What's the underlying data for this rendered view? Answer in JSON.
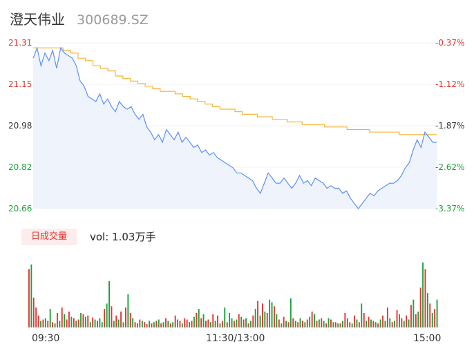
{
  "header": {
    "name": "澄天伟业",
    "code": "300689.SZ"
  },
  "colors": {
    "price_line": "#5b8ff9",
    "avg_line": "#f5b335",
    "up": "#e8332f",
    "down": "#1aa33a",
    "area_fill": "#eef3fc"
  },
  "chart_data": {
    "type": "line",
    "price_axis": {
      "ticks": [
        {
          "label": "21.31",
          "color": "#e8332f"
        },
        {
          "label": "21.15",
          "color": "#e8332f"
        },
        {
          "label": "20.98",
          "color": "#333333"
        },
        {
          "label": "20.82",
          "color": "#1aa33a"
        },
        {
          "label": "20.66",
          "color": "#1aa33a"
        }
      ],
      "ylim": [
        20.66,
        21.31
      ]
    },
    "percent_axis": {
      "ticks": [
        {
          "label": "-0.37%",
          "color": "#e8332f"
        },
        {
          "label": "-1.12%",
          "color": "#e8332f"
        },
        {
          "label": "-1.87%",
          "color": "#333333"
        },
        {
          "label": "-2.62%",
          "color": "#1aa33a"
        },
        {
          "label": "-3.37%",
          "color": "#1aa33a"
        }
      ]
    },
    "x_labels": [
      "09:30",
      "11:30/13:00",
      "15:00"
    ],
    "series": [
      {
        "values": [
          21.25,
          21.29,
          21.22,
          21.27,
          21.24,
          21.28,
          21.21,
          21.29,
          21.27,
          21.26,
          21.25,
          21.22,
          21.16,
          21.14,
          21.1,
          21.09,
          21.08,
          21.11,
          21.07,
          21.09,
          21.06,
          21.04,
          21.08,
          21.06,
          21.05,
          21.06,
          21.03,
          21.01,
          21.03,
          20.98,
          20.96,
          20.93,
          20.95,
          20.92,
          20.97,
          20.95,
          20.93,
          20.96,
          20.92,
          20.94,
          20.92,
          20.9,
          20.91,
          20.88,
          20.89,
          20.87,
          20.88,
          20.86,
          20.85,
          20.84,
          20.83,
          20.82,
          20.8,
          20.8,
          20.79,
          20.78,
          20.77,
          20.74,
          20.72,
          20.76,
          20.8,
          20.78,
          20.76,
          20.76,
          20.78,
          20.76,
          20.74,
          20.76,
          20.79,
          20.76,
          20.77,
          20.75,
          20.78,
          20.77,
          20.76,
          20.74,
          20.75,
          20.74,
          20.74,
          20.72,
          20.73,
          20.7,
          20.68,
          20.66,
          20.68,
          20.7,
          20.72,
          20.71,
          20.73,
          20.74,
          20.75,
          20.76,
          20.76,
          20.77,
          20.79,
          20.82,
          20.84,
          20.89,
          20.93,
          20.9,
          20.96,
          20.94,
          20.92,
          20.92
        ]
      },
      {
        "values": [
          21.29,
          21.29,
          21.29,
          21.29,
          21.28,
          21.27,
          21.25,
          21.24,
          21.22,
          21.21,
          21.2,
          21.18,
          21.17,
          21.16,
          21.15,
          21.14,
          21.13,
          21.12,
          21.12,
          21.11,
          21.1,
          21.09,
          21.08,
          21.07,
          21.06,
          21.05,
          21.05,
          21.04,
          21.03,
          21.03,
          21.02,
          21.02,
          21.01,
          21.01,
          21.0,
          21.0,
          20.99,
          20.99,
          20.99,
          20.98,
          20.98,
          20.98,
          20.97,
          20.97,
          20.97,
          20.96,
          20.96,
          20.96,
          20.96,
          20.95,
          20.95,
          20.95,
          20.95,
          20.95,
          20.95
        ]
      }
    ],
    "volume": {
      "label": "日成交量",
      "text": "vol: 1.03万手",
      "values": [
        0.88,
        0.95,
        0.45,
        0.3,
        0.18,
        0.1,
        0.12,
        0.14,
        0.1,
        0.28,
        0.08,
        0.06,
        0.22,
        0.1,
        0.3,
        0.2,
        0.12,
        0.24,
        0.16,
        0.14,
        0.1,
        0.12,
        0.22,
        0.2,
        0.16,
        0.18,
        0.08,
        0.15,
        0.12,
        0.1,
        0.14,
        0.08,
        0.28,
        0.36,
        0.7,
        0.32,
        0.1,
        0.18,
        0.12,
        0.24,
        0.08,
        0.3,
        0.5,
        0.22,
        0.14,
        0.08,
        0.06,
        0.12,
        0.1,
        0.08,
        0.05,
        0.1,
        0.06,
        0.08,
        0.1,
        0.12,
        0.06,
        0.08,
        0.14,
        0.1,
        0.06,
        0.08,
        0.18,
        0.12,
        0.1,
        0.06,
        0.14,
        0.12,
        0.08,
        0.1,
        0.16,
        0.22,
        0.28,
        0.14,
        0.2,
        0.1,
        0.12,
        0.08,
        0.2,
        0.1,
        0.18,
        0.06,
        0.1,
        0.3,
        0.08,
        0.22,
        0.14,
        0.1,
        0.12,
        0.2,
        0.16,
        0.12,
        0.14,
        0.06,
        0.1,
        0.18,
        0.28,
        0.4,
        0.18,
        0.36,
        0.24,
        0.22,
        0.42,
        0.38,
        0.32,
        0.2,
        0.12,
        0.06,
        0.16,
        0.1,
        0.08,
        0.44,
        0.14,
        0.1,
        0.08,
        0.14,
        0.1,
        0.08,
        0.12,
        0.16,
        0.24,
        0.2,
        0.1,
        0.12,
        0.14,
        0.1,
        0.06,
        0.14,
        0.12,
        0.08,
        0.08,
        0.06,
        0.06,
        0.1,
        0.22,
        0.14,
        0.08,
        0.06,
        0.18,
        0.12,
        0.08,
        0.36,
        0.22,
        0.1,
        0.16,
        0.12,
        0.1,
        0.08,
        0.06,
        0.12,
        0.18,
        0.1,
        0.3,
        0.14,
        0.08,
        0.1,
        0.26,
        0.2,
        0.14,
        0.1,
        0.18,
        0.12,
        0.34,
        0.42,
        0.2,
        0.24,
        0.6,
        0.98,
        0.88,
        0.52,
        0.36,
        0.22,
        0.28,
        0.42
      ],
      "colors": "rgrrrgrgrgrgrgrgrrgrgrgrgrgrgrggrggrgrgrgrgrgrgrgrrgrgrgrgrgrgrgrgrrgrgrgrgrrgrgrgrgrggrgrgrgrgrgrgrgrggrgrgrgrgrgrgrgrgrgrgrgrgrgrgrgrgrgrgrgrgrgrgrgrgrgrgrgrgrgrgrgrgrgrgrgrgrgrgrgrgrgr"
    }
  }
}
